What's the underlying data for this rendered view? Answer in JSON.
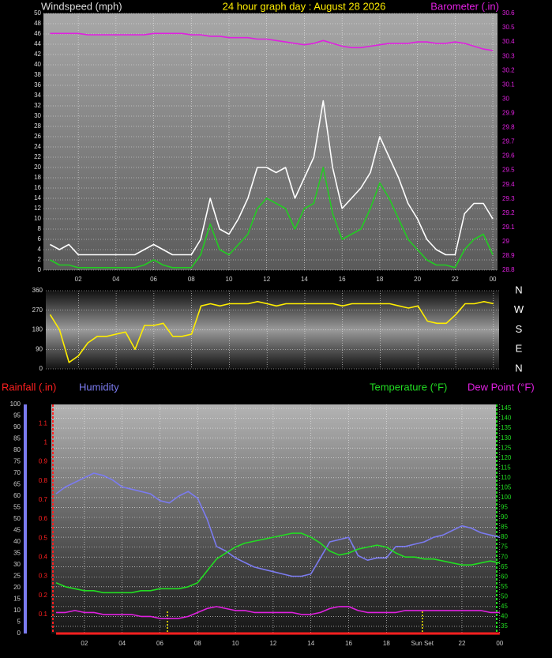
{
  "chart_data": [
    {
      "type": "line",
      "title": "24 hour graph day : August 28 2026",
      "ylabel": "Windspeed (mph)",
      "y2label": "Barometer (.in)",
      "grid": true,
      "x": [
        0.5,
        1,
        1.5,
        2,
        2.5,
        3,
        3.5,
        4,
        4.5,
        5,
        5.5,
        6,
        6.5,
        7,
        7.5,
        8,
        8.5,
        9,
        9.5,
        10,
        10.5,
        11,
        11.5,
        12,
        12.5,
        13,
        13.5,
        14,
        14.5,
        15,
        15.5,
        16,
        16.5,
        17,
        17.5,
        18,
        18.5,
        19,
        19.5,
        20,
        20.5,
        21,
        21.5,
        22,
        22.5,
        23,
        23.5,
        24
      ],
      "xlim": [
        0.15,
        24.25
      ],
      "xticks": [
        {
          "value": 2,
          "label": "02"
        },
        {
          "value": 4,
          "label": "04"
        },
        {
          "value": 6,
          "label": "06"
        },
        {
          "value": 8,
          "label": "08"
        },
        10,
        12,
        14,
        16,
        18,
        20,
        22,
        {
          "value": 24,
          "label": "00"
        }
      ],
      "ylim": [
        0,
        50
      ],
      "yticks": [
        0,
        2,
        4,
        6,
        8,
        10,
        12,
        14,
        16,
        18,
        20,
        22,
        24,
        26,
        28,
        30,
        32,
        34,
        36,
        38,
        40,
        42,
        44,
        46,
        48,
        50
      ],
      "y2lim": [
        28.8,
        30.6
      ],
      "y2ticks": [
        28.8,
        28.9,
        29,
        29.1,
        29.2,
        29.3,
        29.4,
        29.5,
        29.6,
        29.7,
        29.8,
        29.9,
        30,
        30.1,
        30.2,
        30.3,
        30.4,
        30.5,
        30.6
      ],
      "series": [
        {
          "color": "#ffffff",
          "values": [
            5,
            4,
            5,
            3,
            3,
            3,
            3,
            3,
            3,
            3,
            4,
            5,
            4,
            3,
            3,
            3,
            6,
            14,
            8,
            7,
            10,
            14,
            20,
            20,
            19,
            20,
            14,
            18,
            22,
            33,
            20,
            12,
            14,
            16,
            19,
            26,
            22,
            18,
            13,
            10,
            6,
            4,
            3,
            3,
            11,
            13,
            13,
            10
          ]
        },
        {
          "color": "#22cc22",
          "values": [
            2,
            1,
            1,
            0.5,
            0.5,
            0.5,
            0.5,
            0.5,
            0.5,
            0.5,
            1,
            2,
            1,
            0.5,
            0.5,
            0.5,
            3,
            9,
            4,
            3,
            5,
            7,
            12,
            14,
            13,
            12,
            8,
            12,
            13,
            20,
            11,
            6,
            7,
            8,
            12,
            17,
            14,
            10,
            6,
            4,
            2,
            1,
            1,
            0.5,
            4,
            6,
            7,
            3
          ]
        },
        {
          "color": "#e020e0",
          "axis": "y2",
          "values": [
            30.46,
            30.46,
            30.46,
            30.46,
            30.45,
            30.45,
            30.45,
            30.45,
            30.45,
            30.45,
            30.45,
            30.46,
            30.46,
            30.46,
            30.46,
            30.45,
            30.45,
            30.44,
            30.44,
            30.43,
            30.43,
            30.43,
            30.42,
            30.42,
            30.41,
            30.4,
            30.39,
            30.38,
            30.39,
            30.41,
            30.39,
            30.37,
            30.36,
            30.36,
            30.37,
            30.38,
            30.39,
            30.39,
            30.39,
            30.4,
            30.4,
            30.39,
            30.39,
            30.4,
            30.39,
            30.37,
            30.35,
            30.34
          ]
        }
      ]
    },
    {
      "type": "line",
      "grid": true,
      "x": [
        0.5,
        1,
        1.5,
        2,
        2.5,
        3,
        3.5,
        4,
        4.5,
        5,
        5.5,
        6,
        6.5,
        7,
        7.5,
        8,
        8.5,
        9,
        9.5,
        10,
        10.5,
        11,
        11.5,
        12,
        12.5,
        13,
        13.5,
        14,
        14.5,
        15,
        15.5,
        16,
        16.5,
        17,
        17.5,
        18,
        18.5,
        19,
        19.5,
        20,
        20.5,
        21,
        21.5,
        22,
        22.5,
        23,
        23.5,
        24
      ],
      "xlim": [
        0.27,
        24.3
      ],
      "xticks": [
        2,
        4,
        6,
        8,
        10,
        12,
        14,
        16,
        18,
        20,
        22,
        24
      ],
      "ylim": [
        0,
        360
      ],
      "yticks": [
        0,
        90,
        180,
        270,
        360
      ],
      "compass": [
        "N",
        "W",
        "S",
        "E",
        "N"
      ],
      "series": [
        {
          "color": "#ffee00",
          "values": [
            250,
            180,
            30,
            60,
            120,
            150,
            150,
            160,
            170,
            90,
            200,
            200,
            210,
            150,
            150,
            160,
            290,
            300,
            290,
            300,
            300,
            300,
            310,
            300,
            290,
            300,
            300,
            300,
            300,
            300,
            300,
            290,
            300,
            300,
            300,
            300,
            300,
            290,
            280,
            290,
            220,
            210,
            210,
            250,
            300,
            300,
            310,
            300
          ]
        }
      ]
    },
    {
      "type": "line",
      "grid": true,
      "x": [
        0.5,
        1,
        1.5,
        2,
        2.5,
        3,
        3.5,
        4,
        4.5,
        5,
        5.5,
        6,
        6.5,
        7,
        7.5,
        8,
        8.5,
        9,
        9.5,
        10,
        10.5,
        11,
        11.5,
        12,
        12.5,
        13,
        13.5,
        14,
        14.5,
        15,
        15.5,
        16,
        16.5,
        17,
        17.5,
        18,
        18.5,
        19,
        19.5,
        20,
        20.5,
        21,
        21.5,
        22,
        22.5,
        23,
        23.5,
        24
      ],
      "xlim": [
        0.25,
        23.8
      ],
      "xticks": [
        {
          "value": 2,
          "label": "02"
        },
        {
          "value": 4,
          "label": "04"
        },
        {
          "value": 6,
          "label": "06"
        },
        {
          "value": 8,
          "label": "08"
        },
        10,
        12,
        14,
        16,
        18,
        22,
        {
          "value": 24,
          "label": "00"
        }
      ],
      "ylim": [
        0,
        100
      ],
      "yticks": [
        0,
        5,
        10,
        15,
        20,
        25,
        30,
        35,
        40,
        45,
        50,
        55,
        60,
        65,
        70,
        75,
        80,
        85,
        90,
        95,
        100
      ],
      "y2lim": [
        31.4,
        147
      ],
      "y2ticks": [
        35,
        40,
        45,
        50,
        55,
        60,
        65,
        70,
        75,
        80,
        85,
        90,
        95,
        100,
        105,
        110,
        115,
        120,
        125,
        130,
        135,
        140,
        145
      ],
      "y3lim": [
        0,
        1.2
      ],
      "y3ticks": [
        0.1,
        0.2,
        0.3,
        0.4,
        0.5,
        0.6,
        0.7,
        0.8,
        0.9,
        1,
        1.1
      ],
      "events": [
        {
          "x": 6.4
        },
        {
          "x": 19.9,
          "label": "Sun Set"
        }
      ],
      "series": [
        {
          "name": "Rainfall (.in)",
          "color": "#ff2020",
          "axis": "y3",
          "values": [
            0,
            0,
            0,
            0,
            0,
            0,
            0,
            0,
            0,
            0,
            0,
            0,
            0,
            0,
            0,
            0,
            0,
            0,
            0,
            0,
            0,
            0,
            0,
            0,
            0,
            0,
            0,
            0,
            0,
            0,
            0,
            0,
            0,
            0,
            0,
            0,
            0,
            0,
            0,
            0,
            0,
            0,
            0,
            0,
            0,
            0,
            0,
            0
          ]
        },
        {
          "name": "Humidity",
          "color": "#7b7bf0",
          "values": [
            61,
            64,
            66,
            68,
            70,
            69,
            67,
            64,
            63,
            62,
            61,
            58,
            57,
            60,
            62,
            59,
            50,
            38,
            36,
            33,
            31,
            29,
            28,
            27,
            26,
            25,
            25,
            26,
            33,
            40,
            41,
            42,
            34,
            32,
            33,
            33,
            38,
            38,
            39,
            40,
            42,
            43,
            45,
            47,
            46,
            44,
            43,
            42
          ]
        },
        {
          "name": "Temperature (°F)",
          "color": "#22dd22",
          "axis": "y2",
          "values": [
            57,
            55,
            54,
            53,
            53,
            52,
            52,
            52,
            52,
            53,
            53,
            54,
            54,
            54,
            55,
            57,
            63,
            69,
            72,
            75,
            77,
            78,
            79,
            80,
            81,
            82,
            82,
            80,
            77,
            73,
            71,
            72,
            74,
            75,
            76,
            75,
            72,
            70,
            70,
            69,
            69,
            68,
            67,
            66,
            66,
            67,
            68,
            67
          ]
        },
        {
          "name": "Dew Point (°F)",
          "color": "#e020e0",
          "axis": "y2",
          "values": [
            42,
            42,
            43,
            42,
            42,
            41,
            41,
            41,
            41,
            40,
            40,
            39,
            39,
            39,
            40,
            42,
            44,
            45,
            44,
            43,
            43,
            42,
            42,
            42,
            42,
            42,
            41,
            41,
            42,
            44,
            45,
            45,
            43,
            42,
            42,
            42,
            42,
            43,
            43,
            43,
            43,
            43,
            43,
            43,
            43,
            43,
            42,
            42
          ]
        }
      ]
    }
  ]
}
